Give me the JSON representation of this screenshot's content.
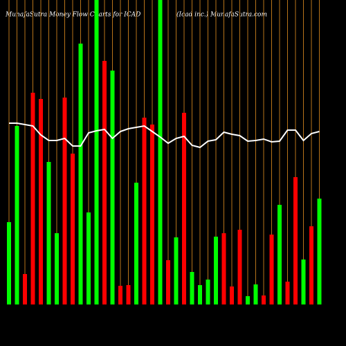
{
  "chart_data": {
    "type": "bar",
    "title": "MunafaSutra  Money Flow  Charts for ICAD",
    "subtitle": "(Icad inc.) MunafaSutra.com",
    "categories": [
      null,
      null,
      null,
      null,
      null,
      null,
      null,
      null,
      null,
      null,
      null,
      null,
      null,
      null,
      null,
      null,
      null,
      null,
      null,
      null,
      null,
      null,
      null,
      null,
      null,
      null,
      null,
      null,
      null,
      null,
      null,
      null,
      null,
      null,
      null,
      null,
      null,
      null,
      null,
      null
    ],
    "values": [
      119,
      258,
      44,
      306,
      297,
      206,
      103,
      299,
      218,
      377,
      133,
      440,
      352,
      338,
      27,
      28,
      176,
      270,
      260,
      440,
      64,
      97,
      277,
      47,
      28,
      36,
      98,
      103,
      26,
      108,
      12,
      29,
      13,
      101,
      144,
      33,
      184,
      65,
      113,
      153
    ],
    "bar_colors": [
      "#00ff00",
      "#00ff00",
      "#ff0000",
      "#ff0000",
      "#ff0000",
      "#00ff00",
      "#00ff00",
      "#ff0000",
      "#ff0000",
      "#00ff00",
      "#00ff00",
      "#00ff00",
      "#ff0000",
      "#00ff00",
      "#ff0000",
      "#ff0000",
      "#00ff00",
      "#ff0000",
      "#ff0000",
      "#00ff00",
      "#ff0000",
      "#00ff00",
      "#ff0000",
      "#00ff00",
      "#00ff00",
      "#00ff00",
      "#00ff00",
      "#ff0000",
      "#ff0000",
      "#ff0000",
      "#00ff00",
      "#00ff00",
      "#ff0000",
      "#ff0000",
      "#00ff00",
      "#ff0000",
      "#ff0000",
      "#00ff00",
      "#ff0000",
      "#00ff00"
    ],
    "line": {
      "color": "#ffffff",
      "values": [
        262,
        262,
        260,
        258,
        245,
        237,
        237,
        240,
        229,
        229,
        248,
        251,
        253,
        240,
        250,
        254,
        256,
        258,
        250,
        242,
        233,
        240,
        243,
        230,
        227,
        236,
        238,
        249,
        246,
        244,
        236,
        237,
        239,
        235,
        236,
        252,
        252,
        237,
        247,
        250
      ]
    },
    "gridline_color": "#b8741a",
    "ylim": [
      0,
      440
    ]
  }
}
